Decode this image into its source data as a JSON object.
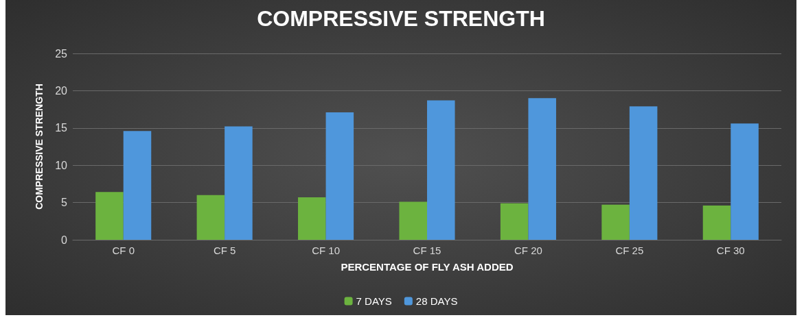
{
  "chart_data": {
    "type": "bar",
    "title": "COMPRESSIVE STRENGTH",
    "xlabel": "PERCENTAGE OF FLY ASH ADDED",
    "ylabel": "COMPRESSIVE STRENGTH",
    "categories": [
      "CF 0",
      "CF 5",
      "CF 10",
      "CF 15",
      "CF 20",
      "CF 25",
      "CF 30"
    ],
    "series": [
      {
        "name": "7 DAYS",
        "color": "#6cb33f",
        "values": [
          6.4,
          6.0,
          5.7,
          5.1,
          4.9,
          4.7,
          4.6
        ]
      },
      {
        "name": "28 DAYS",
        "color": "#4f97dc",
        "values": [
          14.6,
          15.2,
          17.1,
          18.7,
          19.0,
          17.9,
          15.6
        ]
      }
    ],
    "ylim": [
      0,
      25
    ],
    "yticks": [
      0,
      5,
      10,
      15,
      20,
      25
    ],
    "grid": "y",
    "legend": "bottom"
  }
}
